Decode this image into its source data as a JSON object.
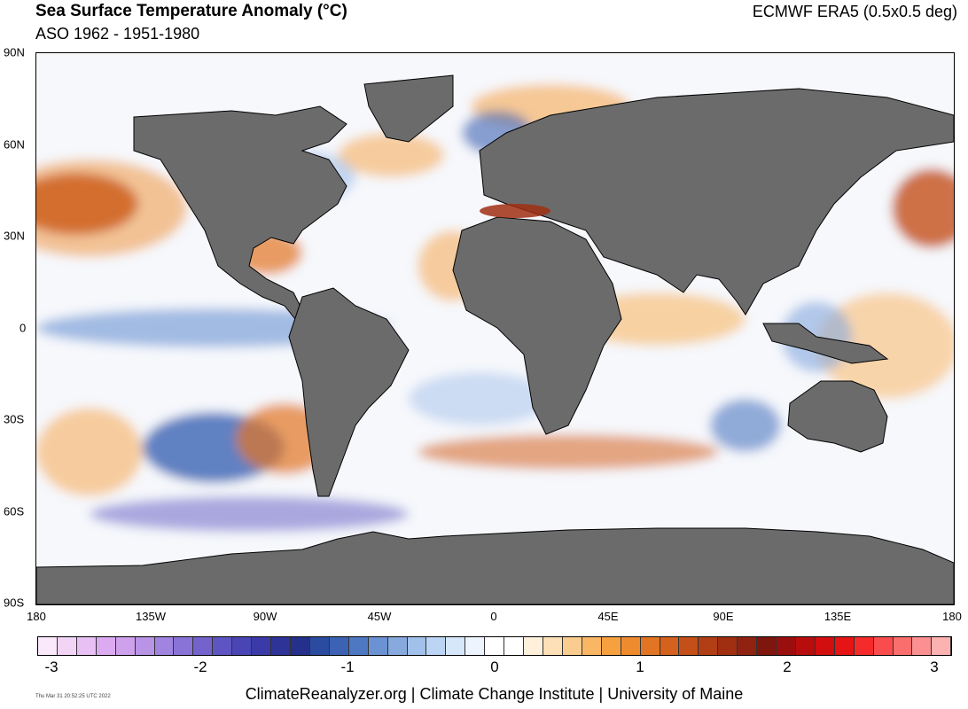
{
  "header": {
    "title": "Sea Surface Temperature Anomaly (°C)",
    "subtitle": "ASO 1962 - 1951-1980",
    "source": "ECMWF ERA5 (0.5x0.5 deg)"
  },
  "axes": {
    "lat_labels": [
      "90N",
      "60N",
      "30N",
      "0",
      "30S",
      "60S",
      "90S"
    ],
    "lon_labels": [
      "180",
      "135W",
      "90W",
      "45W",
      "0",
      "45E",
      "90E",
      "135E",
      "180"
    ]
  },
  "colorbar": {
    "tick_labels": [
      "-3",
      "-2",
      "-1",
      "0",
      "1",
      "2",
      "3"
    ],
    "colors": [
      "#f9e9fb",
      "#f2d4f7",
      "#e9c0f3",
      "#dcaaf0",
      "#cfa0ec",
      "#b893e6",
      "#a184df",
      "#8a73d6",
      "#7463cc",
      "#5e55c2",
      "#4a45b5",
      "#3a3aa8",
      "#2e3398",
      "#243089",
      "#2b4ba1",
      "#3c63b3",
      "#4f78c2",
      "#6b92d2",
      "#86a9de",
      "#a1c0ea",
      "#bcd5f4",
      "#d6e7fa",
      "#edf4fd",
      "#ffffff",
      "#ffffff",
      "#fff0dc",
      "#fde0b7",
      "#fbcc8f",
      "#f9b766",
      "#f6a03f",
      "#ee8b2e",
      "#e27524",
      "#d4611d",
      "#c44f19",
      "#b23e15",
      "#a02f12",
      "#8f2210",
      "#7f160e",
      "#9a0e0e",
      "#b80d0d",
      "#d20e0e",
      "#e61414",
      "#f52a2a",
      "#fa4c4c",
      "#fb6e6e",
      "#fc9090",
      "#fdb2b2"
    ]
  },
  "footer": {
    "timestamp": "Thu Mar 31 20:52:25 UTC 2022",
    "credits": "ClimateReanalyzer.org | Climate Change Institute | University of Maine"
  },
  "style": {
    "land_color": "#6b6b6b",
    "warm_color": "#ea8a2c",
    "cool_color": "#3c63b3"
  }
}
